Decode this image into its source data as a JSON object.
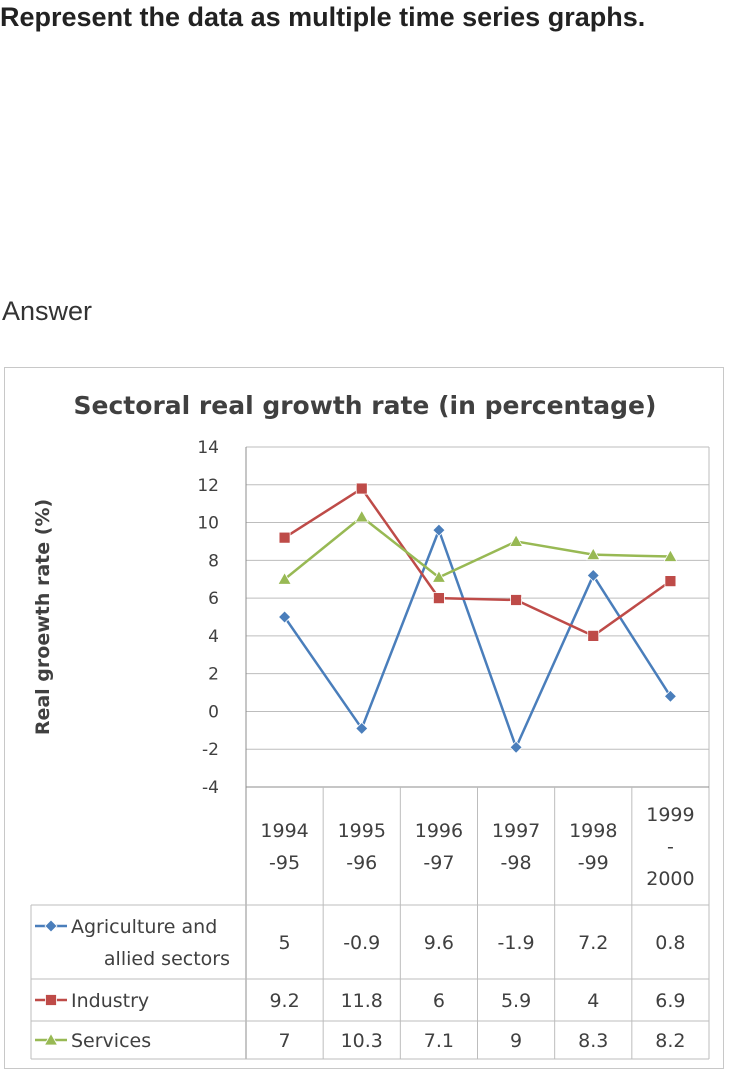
{
  "question": "Represent the data as multiple time series graphs.",
  "answer_label": "Answer",
  "chart_data": {
    "type": "line",
    "title": "Sectoral real growth rate (in percentage)",
    "xlabel": "",
    "ylabel": "Real groewth rate (%)",
    "ylim": [
      -4,
      14
    ],
    "yticks": [
      14,
      12,
      10,
      8,
      6,
      4,
      2,
      0,
      -2,
      -4
    ],
    "grid": true,
    "legend": "data table",
    "categories": [
      [
        "1994",
        "-95"
      ],
      [
        "1995",
        "-96"
      ],
      [
        "1996",
        "-97"
      ],
      [
        "1997",
        "-98"
      ],
      [
        "1998",
        "-99"
      ],
      [
        "1999",
        "-",
        "2000"
      ]
    ],
    "series": [
      {
        "name": [
          "Agriculture and",
          "allied sectors"
        ],
        "color": "#4a7ebb",
        "marker": "diamond",
        "values": [
          5,
          -0.9,
          9.6,
          -1.9,
          7.2,
          0.8
        ],
        "labels": [
          "5",
          "-0.9",
          "9.6",
          "-1.9",
          "7.2",
          "0.8"
        ]
      },
      {
        "name": [
          "Industry"
        ],
        "color": "#be4b48",
        "marker": "square",
        "values": [
          9.2,
          11.8,
          6,
          5.9,
          4,
          6.9
        ],
        "labels": [
          "9.2",
          "11.8",
          "6",
          "5.9",
          "4",
          "6.9"
        ]
      },
      {
        "name": [
          "Services"
        ],
        "color": "#98b954",
        "marker": "triangle",
        "values": [
          7,
          10.3,
          7.1,
          9,
          8.3,
          8.2
        ],
        "labels": [
          "7",
          "10.3",
          "7.1",
          "9",
          "8.3",
          "8.2"
        ]
      }
    ]
  }
}
